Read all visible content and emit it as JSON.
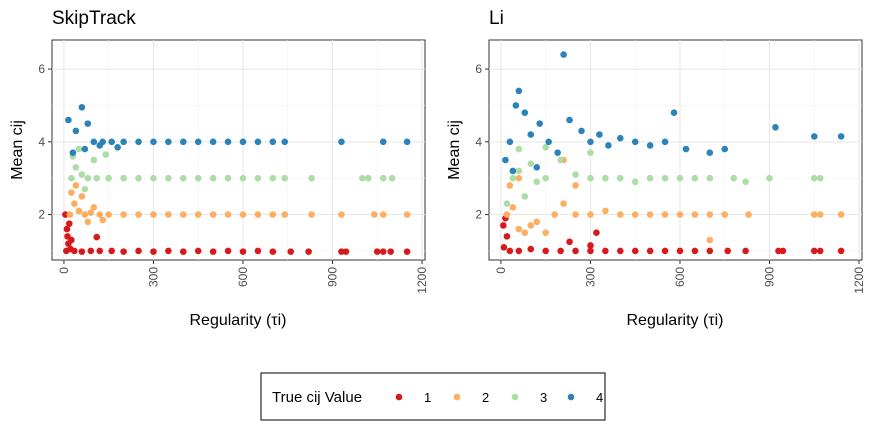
{
  "chart_data": {
    "type": "scatter",
    "panels": [
      {
        "title": "SkipTrack",
        "xlabel": "Regularity (τi)",
        "ylabel": "Mean cij",
        "xlim": [
          -40,
          1210
        ],
        "ylim": [
          0.75,
          6.8
        ],
        "xticks": [
          0,
          300,
          600,
          900,
          1200
        ],
        "yticks": [
          2,
          4,
          6
        ],
        "grid": true
      },
      {
        "title": "Li",
        "xlabel": "Regularity (τi)",
        "ylabel": "Mean cij",
        "xlim": [
          -40,
          1210
        ],
        "ylim": [
          0.75,
          6.8
        ],
        "xticks": [
          0,
          300,
          600,
          900,
          1200
        ],
        "yticks": [
          2,
          4,
          6
        ],
        "grid": true
      }
    ],
    "legend": {
      "title": "True cij Value",
      "placement": "bottom",
      "entries": [
        {
          "label": "1",
          "color": "#d7191c"
        },
        {
          "label": "2",
          "color": "#fdae61"
        },
        {
          "label": "3",
          "color": "#abdda4"
        },
        {
          "label": "4",
          "color": "#2b83ba"
        }
      ]
    },
    "series": [
      {
        "name": "1",
        "color": "#d7191c",
        "panel": "SkipTrack",
        "points": [
          [
            8,
            1.0
          ],
          [
            15,
            1.2
          ],
          [
            22,
            1.05
          ],
          [
            35,
            1.0
          ],
          [
            60,
            0.98
          ],
          [
            90,
            1.0
          ],
          [
            120,
            1.0
          ],
          [
            160,
            1.0
          ],
          [
            200,
            0.98
          ],
          [
            250,
            1.0
          ],
          [
            300,
            0.98
          ],
          [
            350,
            1.0
          ],
          [
            400,
            0.98
          ],
          [
            450,
            1.0
          ],
          [
            500,
            0.98
          ],
          [
            550,
            1.0
          ],
          [
            600,
            0.98
          ],
          [
            650,
            1.0
          ],
          [
            700,
            0.98
          ],
          [
            760,
            0.98
          ],
          [
            820,
            0.98
          ],
          [
            930,
            0.98
          ],
          [
            945,
            0.98
          ],
          [
            1050,
            0.98
          ],
          [
            1070,
            0.98
          ],
          [
            1095,
            0.98
          ],
          [
            1150,
            0.98
          ],
          [
            10,
            1.6
          ],
          [
            18,
            1.75
          ],
          [
            12,
            1.4
          ],
          [
            25,
            1.3
          ],
          [
            5,
            2.0
          ],
          [
            110,
            1.38
          ]
        ]
      },
      {
        "name": "2",
        "color": "#fdae61",
        "panel": "SkipTrack",
        "points": [
          [
            20,
            2.0
          ],
          [
            35,
            2.3
          ],
          [
            50,
            2.1
          ],
          [
            70,
            2.0
          ],
          [
            90,
            2.05
          ],
          [
            120,
            2.0
          ],
          [
            150,
            2.0
          ],
          [
            200,
            2.0
          ],
          [
            250,
            2.0
          ],
          [
            300,
            2.0
          ],
          [
            350,
            2.0
          ],
          [
            400,
            2.0
          ],
          [
            450,
            2.0
          ],
          [
            500,
            2.0
          ],
          [
            550,
            2.0
          ],
          [
            600,
            2.0
          ],
          [
            650,
            2.0
          ],
          [
            700,
            2.0
          ],
          [
            740,
            2.0
          ],
          [
            830,
            2.0
          ],
          [
            930,
            2.0
          ],
          [
            1040,
            2.0
          ],
          [
            1070,
            2.0
          ],
          [
            1150,
            2.0
          ],
          [
            25,
            2.6
          ],
          [
            40,
            2.8
          ],
          [
            60,
            2.5
          ],
          [
            80,
            1.8
          ],
          [
            100,
            2.2
          ],
          [
            130,
            1.85
          ]
        ]
      },
      {
        "name": "3",
        "color": "#abdda4",
        "panel": "SkipTrack",
        "points": [
          [
            25,
            3.0
          ],
          [
            40,
            3.3
          ],
          [
            60,
            3.1
          ],
          [
            80,
            3.0
          ],
          [
            110,
            3.0
          ],
          [
            150,
            3.0
          ],
          [
            200,
            3.0
          ],
          [
            250,
            3.0
          ],
          [
            300,
            3.0
          ],
          [
            350,
            3.0
          ],
          [
            400,
            3.0
          ],
          [
            450,
            3.0
          ],
          [
            500,
            3.0
          ],
          [
            550,
            3.0
          ],
          [
            600,
            3.0
          ],
          [
            650,
            3.0
          ],
          [
            700,
            3.0
          ],
          [
            740,
            3.0
          ],
          [
            830,
            3.0
          ],
          [
            1000,
            3.0
          ],
          [
            1020,
            3.0
          ],
          [
            1070,
            3.0
          ],
          [
            1100,
            3.0
          ],
          [
            30,
            3.6
          ],
          [
            50,
            3.8
          ],
          [
            70,
            2.7
          ],
          [
            100,
            3.5
          ],
          [
            140,
            3.65
          ]
        ]
      },
      {
        "name": "4",
        "color": "#2b83ba",
        "panel": "SkipTrack",
        "points": [
          [
            15,
            4.6
          ],
          [
            40,
            4.3
          ],
          [
            60,
            4.95
          ],
          [
            80,
            4.5
          ],
          [
            100,
            4.0
          ],
          [
            130,
            4.0
          ],
          [
            160,
            4.0
          ],
          [
            200,
            4.0
          ],
          [
            250,
            4.0
          ],
          [
            300,
            4.0
          ],
          [
            350,
            4.0
          ],
          [
            400,
            4.0
          ],
          [
            450,
            4.0
          ],
          [
            500,
            4.0
          ],
          [
            550,
            4.0
          ],
          [
            600,
            4.0
          ],
          [
            650,
            4.0
          ],
          [
            700,
            4.0
          ],
          [
            740,
            4.0
          ],
          [
            930,
            4.0
          ],
          [
            1070,
            4.0
          ],
          [
            1150,
            4.0
          ],
          [
            30,
            3.7
          ],
          [
            70,
            3.8
          ],
          [
            120,
            3.9
          ],
          [
            180,
            3.85
          ]
        ]
      },
      {
        "name": "1",
        "color": "#d7191c",
        "panel": "Li",
        "points": [
          [
            10,
            1.1
          ],
          [
            20,
            1.4
          ],
          [
            30,
            1.0
          ],
          [
            60,
            1.0
          ],
          [
            100,
            1.05
          ],
          [
            150,
            1.0
          ],
          [
            200,
            1.0
          ],
          [
            250,
            1.0
          ],
          [
            300,
            1.0
          ],
          [
            350,
            1.0
          ],
          [
            400,
            1.0
          ],
          [
            450,
            1.0
          ],
          [
            500,
            1.0
          ],
          [
            550,
            1.0
          ],
          [
            600,
            1.0
          ],
          [
            650,
            1.0
          ],
          [
            700,
            1.0
          ],
          [
            760,
            1.0
          ],
          [
            820,
            1.0
          ],
          [
            930,
            1.0
          ],
          [
            945,
            1.0
          ],
          [
            1050,
            1.0
          ],
          [
            1070,
            1.0
          ],
          [
            1140,
            1.0
          ],
          [
            8,
            1.7
          ],
          [
            15,
            1.9
          ],
          [
            230,
            1.25
          ],
          [
            300,
            1.15
          ],
          [
            320,
            1.5
          ]
        ]
      },
      {
        "name": "2",
        "color": "#fdae61",
        "panel": "Li",
        "points": [
          [
            20,
            2.0
          ],
          [
            40,
            2.2
          ],
          [
            60,
            1.6
          ],
          [
            80,
            1.5
          ],
          [
            100,
            1.7
          ],
          [
            120,
            1.8
          ],
          [
            150,
            1.5
          ],
          [
            180,
            2.0
          ],
          [
            210,
            2.3
          ],
          [
            250,
            2.0
          ],
          [
            300,
            2.0
          ],
          [
            350,
            2.1
          ],
          [
            400,
            2.0
          ],
          [
            450,
            2.0
          ],
          [
            500,
            2.0
          ],
          [
            550,
            2.0
          ],
          [
            600,
            2.0
          ],
          [
            650,
            2.0
          ],
          [
            700,
            2.0
          ],
          [
            750,
            2.0
          ],
          [
            830,
            2.0
          ],
          [
            1050,
            2.0
          ],
          [
            1070,
            2.0
          ],
          [
            1140,
            2.0
          ],
          [
            30,
            2.8
          ],
          [
            60,
            3.0
          ],
          [
            210,
            3.5
          ],
          [
            250,
            2.8
          ],
          [
            700,
            1.3
          ]
        ]
      },
      {
        "name": "3",
        "color": "#abdda4",
        "panel": "Li",
        "points": [
          [
            20,
            2.3
          ],
          [
            40,
            3.0
          ],
          [
            60,
            3.2
          ],
          [
            80,
            2.5
          ],
          [
            100,
            3.4
          ],
          [
            120,
            2.9
          ],
          [
            150,
            3.0
          ],
          [
            200,
            3.5
          ],
          [
            250,
            3.1
          ],
          [
            300,
            3.0
          ],
          [
            350,
            3.0
          ],
          [
            400,
            3.0
          ],
          [
            450,
            2.9
          ],
          [
            500,
            3.0
          ],
          [
            550,
            3.0
          ],
          [
            600,
            3.0
          ],
          [
            650,
            3.0
          ],
          [
            700,
            3.0
          ],
          [
            780,
            3.0
          ],
          [
            820,
            2.9
          ],
          [
            900,
            3.0
          ],
          [
            1050,
            3.0
          ],
          [
            1070,
            3.0
          ],
          [
            60,
            3.8
          ],
          [
            150,
            3.85
          ],
          [
            300,
            3.7
          ]
        ]
      },
      {
        "name": "4",
        "color": "#2b83ba",
        "panel": "Li",
        "points": [
          [
            15,
            3.5
          ],
          [
            30,
            4.0
          ],
          [
            50,
            5.0
          ],
          [
            60,
            5.4
          ],
          [
            80,
            4.8
          ],
          [
            100,
            4.2
          ],
          [
            130,
            4.5
          ],
          [
            160,
            4.0
          ],
          [
            190,
            3.7
          ],
          [
            210,
            6.4
          ],
          [
            230,
            4.6
          ],
          [
            270,
            4.3
          ],
          [
            300,
            4.0
          ],
          [
            330,
            4.2
          ],
          [
            360,
            3.9
          ],
          [
            400,
            4.1
          ],
          [
            450,
            4.0
          ],
          [
            500,
            3.9
          ],
          [
            550,
            4.0
          ],
          [
            580,
            4.8
          ],
          [
            620,
            3.8
          ],
          [
            700,
            3.7
          ],
          [
            750,
            3.8
          ],
          [
            920,
            4.4
          ],
          [
            1050,
            4.15
          ],
          [
            1140,
            4.15
          ],
          [
            40,
            3.2
          ],
          [
            120,
            3.3
          ]
        ]
      }
    ]
  }
}
